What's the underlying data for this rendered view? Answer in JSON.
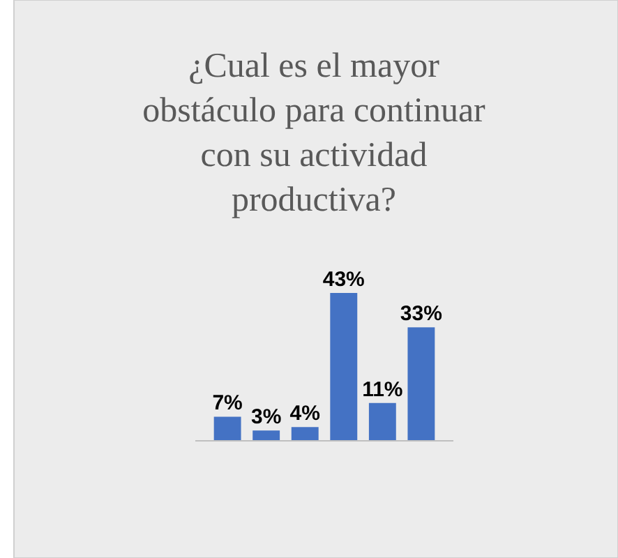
{
  "chart_data": {
    "type": "bar",
    "title": "¿Cual es el mayor obstáculo para continuar con su actividad productiva?",
    "categories": [
      null,
      null,
      null,
      null,
      null,
      null
    ],
    "values": [
      7,
      3,
      4,
      43,
      11,
      33
    ],
    "value_labels": [
      "7%",
      "3%",
      "4%",
      "43%",
      "11%",
      "33%"
    ],
    "color": "#4472c4",
    "relative": false
  }
}
